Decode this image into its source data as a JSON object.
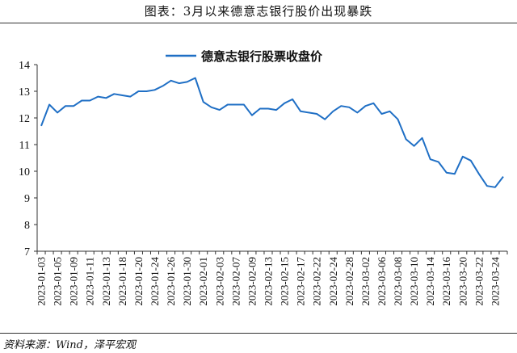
{
  "header": {
    "title": "图表：3月以来德意志银行股价出现暴跌"
  },
  "footer": {
    "source": "资料来源：Wind，泽平宏观"
  },
  "colors": {
    "series": "#1f6fc5",
    "axis": "#333333"
  },
  "chart_data": {
    "type": "line",
    "title": "",
    "xlabel": "",
    "ylabel": "",
    "ylim": [
      7,
      14
    ],
    "yticks": [
      7,
      8,
      9,
      10,
      11,
      12,
      13,
      14
    ],
    "grid": false,
    "legend_position": "top-center",
    "x_tick_labels": [
      "2023-01-03",
      "2023-01-05",
      "2023-01-09",
      "2023-01-11",
      "2023-01-13",
      "2023-01-18",
      "2023-01-20",
      "2023-01-24",
      "2023-01-26",
      "2023-01-30",
      "2023-02-01",
      "2023-02-03",
      "2023-02-07",
      "2023-02-09",
      "2023-02-13",
      "2023-02-15",
      "2023-02-17",
      "2023-02-22",
      "2023-02-24",
      "2023-02-28",
      "2023-03-02",
      "2023-03-06",
      "2023-03-08",
      "2023-03-10",
      "2023-03-14",
      "2023-03-16",
      "2023-03-20",
      "2023-03-22",
      "2023-03-24"
    ],
    "series": [
      {
        "name": "德意志银行股票收盘价",
        "x": [
          "2023-01-03",
          "2023-01-04",
          "2023-01-05",
          "2023-01-06",
          "2023-01-09",
          "2023-01-10",
          "2023-01-11",
          "2023-01-12",
          "2023-01-13",
          "2023-01-16",
          "2023-01-18",
          "2023-01-19",
          "2023-01-20",
          "2023-01-23",
          "2023-01-24",
          "2023-01-25",
          "2023-01-26",
          "2023-01-27",
          "2023-01-30",
          "2023-01-31",
          "2023-02-01",
          "2023-02-02",
          "2023-02-03",
          "2023-02-06",
          "2023-02-07",
          "2023-02-08",
          "2023-02-09",
          "2023-02-10",
          "2023-02-13",
          "2023-02-14",
          "2023-02-15",
          "2023-02-16",
          "2023-02-17",
          "2023-02-20",
          "2023-02-22",
          "2023-02-23",
          "2023-02-24",
          "2023-02-27",
          "2023-02-28",
          "2023-03-01",
          "2023-03-02",
          "2023-03-03",
          "2023-03-06",
          "2023-03-07",
          "2023-03-08",
          "2023-03-09",
          "2023-03-10",
          "2023-03-13",
          "2023-03-14",
          "2023-03-15",
          "2023-03-16",
          "2023-03-17",
          "2023-03-20",
          "2023-03-21",
          "2023-03-22",
          "2023-03-23",
          "2023-03-24",
          "2023-03-27"
        ],
        "values": [
          11.7,
          12.5,
          12.2,
          12.45,
          12.45,
          12.65,
          12.65,
          12.8,
          12.75,
          12.9,
          12.85,
          12.8,
          13.0,
          13.0,
          13.05,
          13.2,
          13.4,
          13.3,
          13.35,
          13.5,
          12.6,
          12.4,
          12.3,
          12.5,
          12.5,
          12.5,
          12.1,
          12.35,
          12.35,
          12.3,
          12.55,
          12.7,
          12.25,
          12.2,
          12.15,
          11.95,
          12.25,
          12.45,
          12.4,
          12.2,
          12.45,
          12.55,
          12.15,
          12.25,
          11.95,
          11.2,
          10.95,
          11.25,
          10.45,
          10.35,
          9.95,
          9.9,
          10.55,
          10.4,
          9.9,
          9.45,
          9.4,
          9.8
        ]
      }
    ]
  }
}
